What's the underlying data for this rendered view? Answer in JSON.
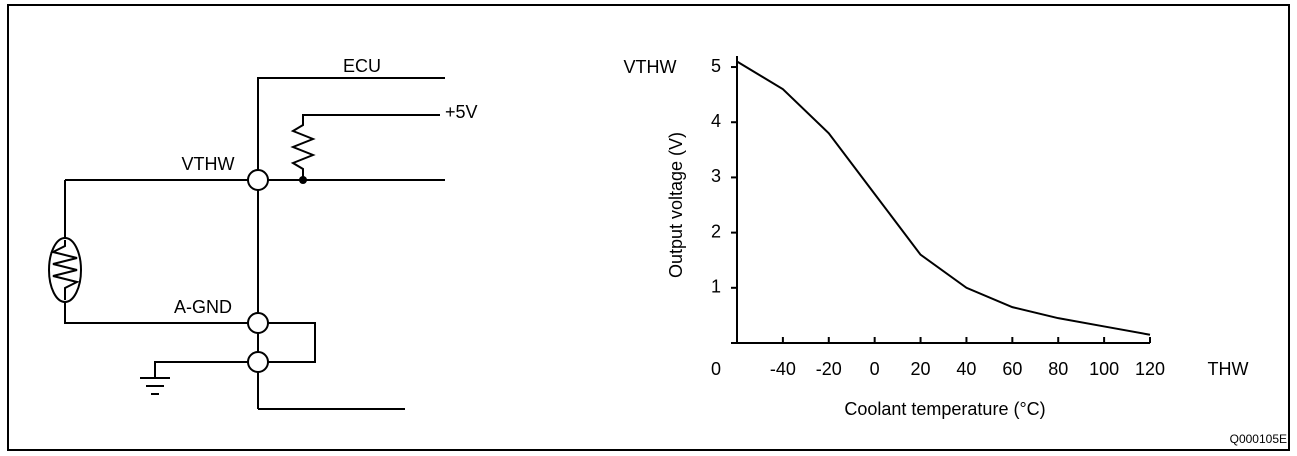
{
  "circuit": {
    "labels": [
      "ECU",
      "+5V",
      "VTHW",
      "A-GND"
    ]
  },
  "figure_id": "Q000105E",
  "chart_data": {
    "type": "line",
    "y_unit_label": "VTHW",
    "x_unit_label": "THW",
    "xlabel": "Coolant temperature (°C)",
    "ylabel": "Output voltage (V)",
    "x": [
      -60,
      -40,
      -20,
      0,
      20,
      40,
      60,
      80,
      100,
      120
    ],
    "series": [
      {
        "name": "VTHW",
        "color": "#000000",
        "values": [
          5.1,
          4.6,
          3.8,
          2.7,
          1.6,
          1.0,
          0.65,
          0.45,
          0.3,
          0.15
        ]
      }
    ],
    "xlim": [
      -60,
      120
    ],
    "xticks": [
      -40,
      -20,
      0,
      20,
      40,
      60,
      80,
      100,
      120
    ],
    "ylim": [
      0,
      5.2
    ],
    "yticks": [
      0,
      1,
      2,
      3,
      4,
      5
    ]
  }
}
